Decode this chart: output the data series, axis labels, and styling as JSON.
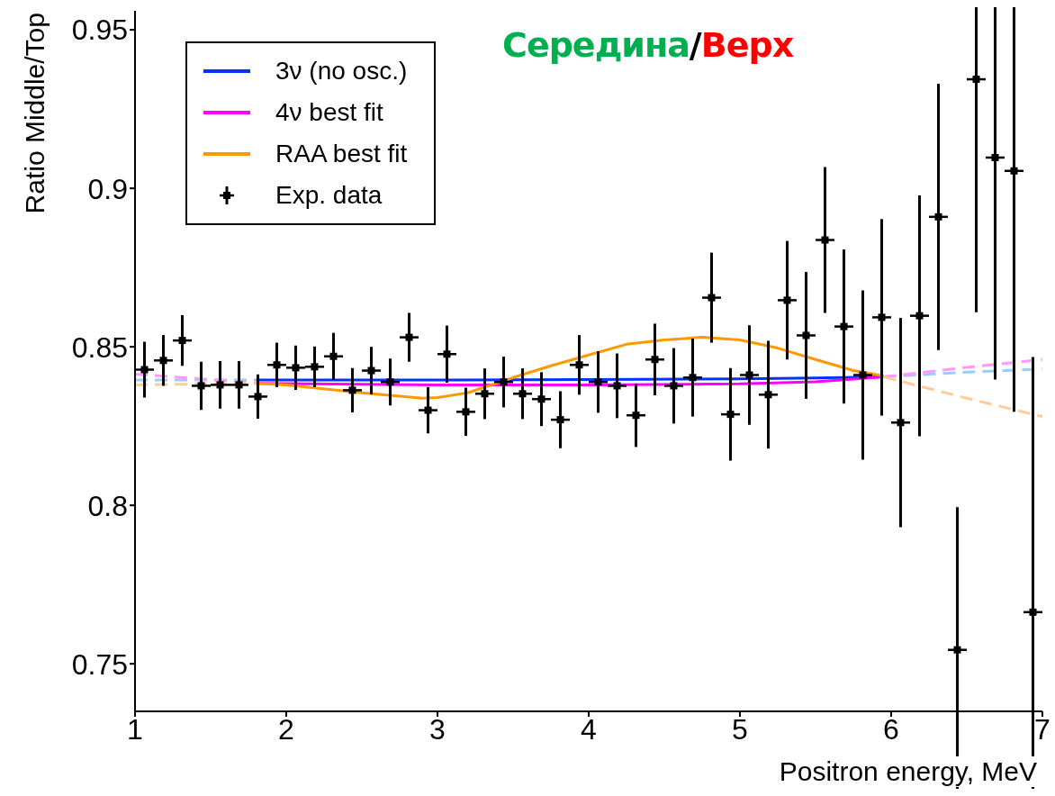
{
  "chart_data": {
    "type": "scatter",
    "title": "Середина/Верх",
    "xlabel": "Positron energy, MeV",
    "ylabel": "Ratio Middle/Top",
    "xlim": [
      1,
      7
    ],
    "xticks": [
      1,
      2,
      3,
      4,
      5,
      6,
      7
    ],
    "ylim": [
      0.735,
      0.956
    ],
    "yticks": [
      0.75,
      0.8,
      0.85,
      0.9,
      0.95
    ],
    "grid": false,
    "legend": "top left",
    "series": [
      {
        "name": "3ν (no osc.)",
        "type": "line",
        "color": "#0033ff",
        "line_style": "solid",
        "x": [
          1.8,
          3.0,
          4.0,
          5.0,
          5.5,
          5.95
        ],
        "values": [
          0.8395,
          0.8395,
          0.8397,
          0.8399,
          0.8402,
          0.8405
        ]
      },
      {
        "name": "4ν best fit",
        "type": "line",
        "color": "#ff00ff",
        "line_style": "solid",
        "x": [
          1.8,
          3.0,
          4.0,
          5.0,
          5.5,
          5.95
        ],
        "values": [
          0.8385,
          0.838,
          0.838,
          0.8383,
          0.839,
          0.8405
        ]
      },
      {
        "name": "RAA best fit",
        "type": "line",
        "color": "#ff9900",
        "line_style": "solid",
        "x": [
          1.8,
          2.0,
          2.5,
          2.9,
          3.0,
          3.2,
          3.5,
          3.75,
          4.0,
          4.25,
          4.5,
          4.75,
          5.0,
          5.25,
          5.5,
          5.75,
          5.95
        ],
        "values": [
          0.8385,
          0.838,
          0.8355,
          0.8338,
          0.834,
          0.8355,
          0.8403,
          0.844,
          0.8474,
          0.8508,
          0.8522,
          0.853,
          0.8522,
          0.8496,
          0.846,
          0.8425,
          0.8408
        ]
      },
      {
        "type": "line",
        "color": "#99ccff",
        "line_style": "dashed",
        "x": [
          1.0,
          1.8,
          4.0,
          5.95,
          6.5,
          7.0
        ],
        "values": [
          0.8395,
          0.8395,
          null,
          0.8405,
          0.842,
          0.843
        ]
      },
      {
        "type": "line",
        "color": "#ff99ff",
        "line_style": "dashed",
        "x": [
          1.0,
          1.4,
          1.8,
          4.0,
          5.95,
          6.5,
          7.0
        ],
        "values": [
          0.8414,
          0.84,
          0.8385,
          null,
          0.8405,
          0.8435,
          0.846
        ]
      },
      {
        "type": "line",
        "color": "#ffcc99",
        "line_style": "dashed",
        "x": [
          1.0,
          1.8,
          4.0,
          5.95,
          6.5,
          7.0
        ],
        "values": [
          0.838,
          0.8385,
          null,
          0.8405,
          0.8338,
          0.828
        ]
      },
      {
        "name": "Exp. data",
        "color": "#000000",
        "marker": "square",
        "x": [
          1.0625,
          1.1875,
          1.3125,
          1.4375,
          1.5625,
          1.6875,
          1.8125,
          1.9375,
          2.0625,
          2.1875,
          2.3125,
          2.4375,
          2.5625,
          2.6875,
          2.8125,
          2.9375,
          3.0625,
          3.1875,
          3.3125,
          3.4375,
          3.5625,
          3.6875,
          3.8125,
          3.9375,
          4.0625,
          4.1875,
          4.3125,
          4.4375,
          4.5625,
          4.6875,
          4.8125,
          4.9375,
          5.0625,
          5.1875,
          5.3125,
          5.4375,
          5.5625,
          5.6875,
          5.8125,
          5.9375,
          6.0625,
          6.1875,
          6.3125,
          6.4375,
          6.5625,
          6.6875,
          6.8125,
          6.9375
        ],
        "values": [
          0.8428,
          0.8457,
          0.852,
          0.8377,
          0.838,
          0.838,
          0.8343,
          0.8443,
          0.8434,
          0.8437,
          0.847,
          0.8363,
          0.8425,
          0.8389,
          0.853,
          0.83,
          0.8477,
          0.8295,
          0.8352,
          0.8389,
          0.8352,
          0.8335,
          0.827,
          0.8443,
          0.8389,
          0.8377,
          0.8284,
          0.846,
          0.8377,
          0.8403,
          0.8655,
          0.8287,
          0.8411,
          0.8349,
          0.8647,
          0.8536,
          0.8837,
          0.8564,
          0.8411,
          0.8593,
          0.8261,
          0.8598,
          0.891,
          0.7544,
          0.9344,
          0.9097,
          0.9055,
          0.7663
        ],
        "errors": [
          0.0088,
          0.008,
          0.008,
          0.0076,
          0.0075,
          0.0075,
          0.007,
          0.007,
          0.007,
          0.0064,
          0.0074,
          0.007,
          0.0075,
          0.0074,
          0.0077,
          0.0073,
          0.009,
          0.0076,
          0.008,
          0.008,
          0.008,
          0.0085,
          0.009,
          0.0094,
          0.0097,
          0.0102,
          0.01,
          0.0113,
          0.0119,
          0.0123,
          0.0142,
          0.0146,
          0.0157,
          0.017,
          0.0187,
          0.02,
          0.023,
          0.0243,
          0.0267,
          0.031,
          0.033,
          0.038,
          0.042,
          0.045,
          0.0735,
          0.07,
          0.076,
          0.0805
        ],
        "xerrors": [
          0.0625,
          0.0625,
          0.0625,
          0.0625,
          0.0625,
          0.0625,
          0.0625,
          0.0625,
          0.0625,
          0.0625,
          0.0625,
          0.0625,
          0.0625,
          0.0625,
          0.0625,
          0.0625,
          0.0625,
          0.0625,
          0.0625,
          0.0625,
          0.0625,
          0.0625,
          0.0625,
          0.0625,
          0.0625,
          0.0625,
          0.0625,
          0.0625,
          0.0625,
          0.0625,
          0.0625,
          0.0625,
          0.0625,
          0.0625,
          0.0625,
          0.0625,
          0.0625,
          0.0625,
          0.0625,
          0.0625,
          0.0625,
          0.0625,
          0.0625,
          0.0625,
          0.0625,
          0.0625,
          0.0625,
          0.0625
        ]
      }
    ]
  }
}
